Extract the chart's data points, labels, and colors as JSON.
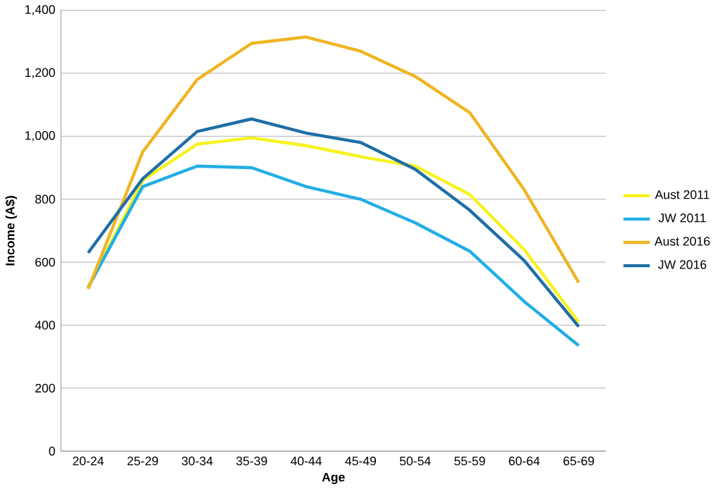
{
  "chart_data": {
    "type": "line",
    "xlabel": "Age",
    "ylabel": "Income (A$)",
    "categories": [
      "20-24",
      "25-29",
      "30-34",
      "35-39",
      "40-44",
      "45-49",
      "50-54",
      "55-59",
      "60-64",
      "65-69"
    ],
    "series": [
      {
        "name": "Aust 2011",
        "color": "#f7f21f",
        "values": [
          520,
          860,
          975,
          995,
          970,
          935,
          905,
          815,
          640,
          410
        ]
      },
      {
        "name": "JW 2011",
        "color": "#22aee4",
        "values": [
          520,
          840,
          905,
          900,
          840,
          800,
          725,
          635,
          475,
          335
        ]
      },
      {
        "name": "Aust 2016",
        "color": "#efb522",
        "values": [
          515,
          950,
          1180,
          1295,
          1315,
          1270,
          1190,
          1075,
          830,
          535
        ]
      },
      {
        "name": "JW 2016",
        "color": "#1f6ea6",
        "values": [
          630,
          865,
          1015,
          1055,
          1010,
          980,
          895,
          765,
          605,
          395
        ]
      }
    ],
    "ylim": [
      0,
      1400
    ],
    "yticks": [
      {
        "value": 0,
        "label": "0"
      },
      {
        "value": 200,
        "label": "200"
      },
      {
        "value": 400,
        "label": "400"
      },
      {
        "value": 600,
        "label": "600"
      },
      {
        "value": 800,
        "label": "800"
      },
      {
        "value": 1000,
        "label": "1,000"
      },
      {
        "value": 1200,
        "label": "1,200"
      },
      {
        "value": 1400,
        "label": "1,400"
      }
    ],
    "grid": "y",
    "legend": "right",
    "marker": "none",
    "line_style": "solid"
  }
}
